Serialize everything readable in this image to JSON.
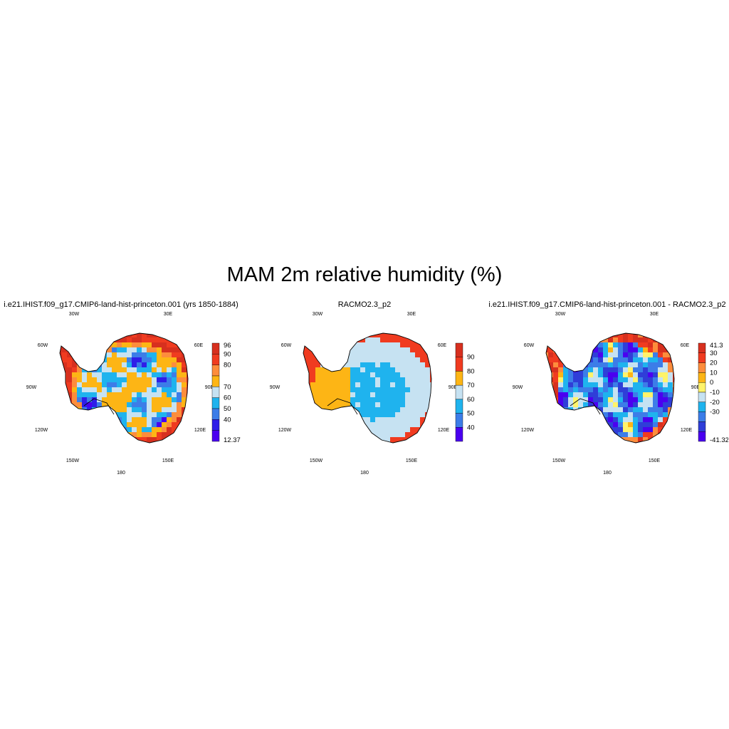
{
  "title": "MAM 2m relative humidity (%)",
  "longitude_labels": [
    "30W",
    "30E",
    "60W",
    "60E",
    "90W",
    "90E",
    "120W",
    "120E",
    "150W",
    "150E",
    "180"
  ],
  "panels": [
    {
      "title": "i.e21.IHIST.f09_g17.CMIP6-land-hist-princeton.001 (yrs 1850-1884)",
      "colorbar": {
        "labels": [
          "96",
          "90",
          "80",
          "70",
          "60",
          "50",
          "40",
          "12.37"
        ],
        "colors": [
          "#d7301f",
          "#f03b20",
          "#fd8d3c",
          "#fdb515",
          "#c6e2f2",
          "#1fb3ee",
          "#3c7de8",
          "#2f1ee8",
          "#4a00f0"
        ]
      },
      "pattern": "model"
    },
    {
      "title": "RACMO2.3_p2",
      "colorbar": {
        "labels": [
          "90",
          "80",
          "70",
          "60",
          "50",
          "40"
        ],
        "colors": [
          "#d7301f",
          "#f03b20",
          "#fdb515",
          "#c6e2f2",
          "#1fb3ee",
          "#3c7de8",
          "#4a00f0"
        ]
      },
      "pattern": "obs"
    },
    {
      "title": "i.e21.IHIST.f09_g17.CMIP6-land-hist-princeton.001 - RACMO2.3_p2",
      "colorbar": {
        "labels": [
          "41.3",
          "30",
          "20",
          "10",
          "0",
          "-10",
          "-20",
          "-30",
          "-41.32"
        ],
        "colors": [
          "#d7301f",
          "#f03b20",
          "#fd8d3c",
          "#fdb515",
          "#fff36a",
          "#c6e2f2",
          "#1fb3ee",
          "#3c7de8",
          "#2f3ed8",
          "#4a00f0"
        ]
      },
      "pattern": "diff"
    }
  ]
}
